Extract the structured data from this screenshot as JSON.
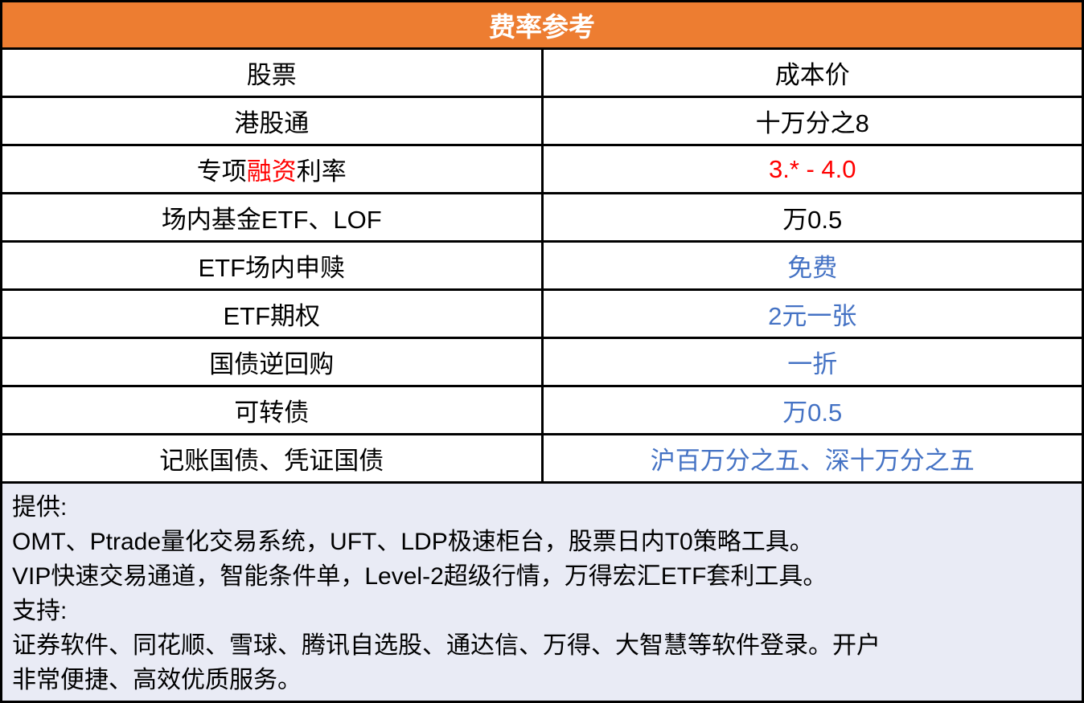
{
  "header": {
    "title": "费率参考"
  },
  "colors": {
    "header_bg": "#ED7D31",
    "header_text": "#FFFFFF",
    "highlight_red": "#FF0000",
    "value_blue": "#4472C4",
    "footer_bg": "#E9EBF5",
    "border": "#000000"
  },
  "table": {
    "rows": [
      {
        "left": [
          {
            "t": "股票"
          }
        ],
        "right": [
          {
            "t": "成本价"
          }
        ]
      },
      {
        "left": [
          {
            "t": "港股通"
          }
        ],
        "right": [
          {
            "t": "十万分之8"
          }
        ]
      },
      {
        "left": [
          {
            "t": "专项"
          },
          {
            "t": "融资",
            "c": "red"
          },
          {
            "t": "利率"
          }
        ],
        "right": [
          {
            "t": "3.* - 4.0",
            "c": "red"
          }
        ]
      },
      {
        "left": [
          {
            "t": "场内基金ETF、LOF"
          }
        ],
        "right": [
          {
            "t": "万0.5"
          }
        ]
      },
      {
        "left": [
          {
            "t": "ETF场内申赎"
          }
        ],
        "right": [
          {
            "t": "免费",
            "c": "blue"
          }
        ]
      },
      {
        "left": [
          {
            "t": "ETF期权"
          }
        ],
        "right": [
          {
            "t": "2元一张",
            "c": "blue"
          }
        ]
      },
      {
        "left": [
          {
            "t": "国债逆回购"
          }
        ],
        "right": [
          {
            "t": "一折",
            "c": "blue"
          }
        ]
      },
      {
        "left": [
          {
            "t": "可转债"
          }
        ],
        "right": [
          {
            "t": "万0.5",
            "c": "blue"
          }
        ]
      },
      {
        "left": [
          {
            "t": "记账国债、凭证国债"
          }
        ],
        "right": [
          {
            "t": "沪百万分之五、深十万分之五",
            "c": "blue"
          }
        ]
      }
    ]
  },
  "footer": {
    "lines": [
      "提供:",
      "OMT、Ptrade量化交易系统，UFT、LDP极速柜台，股票日内T0策略工具。",
      "VIP快速交易通道，智能条件单，Level-2超级行情，万得宏汇ETF套利工具。",
      "支持:",
      "证券软件、同花顺、雪球、腾讯自选股、通达信、万得、大智慧等软件登录。开户",
      "非常便捷、高效优质服务。"
    ]
  }
}
